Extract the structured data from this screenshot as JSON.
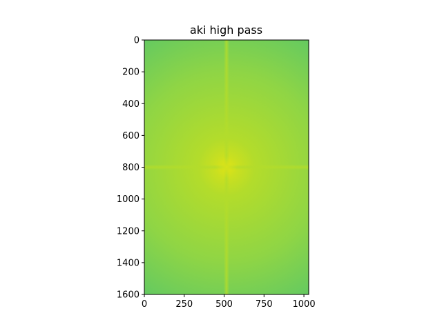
{
  "chart_data": {
    "type": "heatmap",
    "title": "aki high pass",
    "xlabel": "",
    "ylabel": "",
    "image_shape": [
      1600,
      1030
    ],
    "xlim": [
      0,
      1030
    ],
    "ylim": [
      1600,
      0
    ],
    "y_inverted": true,
    "grid": false,
    "legend": "none",
    "colormap": "viridis",
    "x_ticks": [
      0,
      250,
      500,
      750,
      1000
    ],
    "x_tick_labels": [
      "0",
      "250",
      "500",
      "750",
      "1000"
    ],
    "y_ticks": [
      0,
      200,
      400,
      600,
      800,
      1000,
      1200,
      1400,
      1600
    ],
    "y_tick_labels": [
      "0",
      "200",
      "400",
      "600",
      "800",
      "1000",
      "1200",
      "1400",
      "1600"
    ],
    "features": {
      "center": [
        515,
        800
      ],
      "vertical_band_x": 515,
      "horizontal_band_y": 800
    },
    "colors": {
      "edge": "#5fc864",
      "mid": "#8fd545",
      "center": "#d8e219",
      "band": "#b3dc2b"
    }
  }
}
